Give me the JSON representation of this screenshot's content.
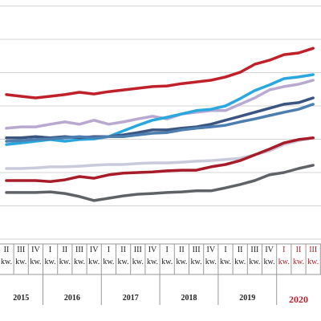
{
  "chart_data": {
    "type": "line",
    "categories": [
      "II kw.",
      "III kw.",
      "IV kw.",
      "I kw.",
      "II kw.",
      "III kw.",
      "IV kw.",
      "I kw.",
      "II kw.",
      "III kw.",
      "IV kw.",
      "I kw.",
      "II kw.",
      "III kw.",
      "IV kw.",
      "I kw.",
      "II kw.",
      "III kw.",
      "IV kw.",
      "I kw.",
      "II kw.",
      "III kw."
    ],
    "years": [
      "2015",
      "2016",
      "2017",
      "2018",
      "2019",
      "2020"
    ],
    "ylim": [
      0,
      7
    ],
    "yticks": [
      0,
      1,
      2,
      3,
      4,
      5,
      6,
      7
    ],
    "grid": true,
    "series": [
      {
        "color": "#c0202a",
        "values": [
          4.34,
          4.29,
          4.24,
          4.29,
          4.34,
          4.41,
          4.36,
          4.43,
          4.48,
          4.53,
          4.58,
          4.6,
          4.67,
          4.72,
          4.77,
          4.87,
          5.01,
          5.25,
          5.37,
          5.54,
          5.59,
          5.73
        ]
      },
      {
        "color": "#b9a8d0",
        "values": [
          3.33,
          3.37,
          3.37,
          3.45,
          3.52,
          3.45,
          3.57,
          3.45,
          3.52,
          3.61,
          3.69,
          3.61,
          3.76,
          3.81,
          3.86,
          3.86,
          4.05,
          4.24,
          4.48,
          4.58,
          4.65,
          4.77
        ]
      },
      {
        "color": "#2aa7df",
        "values": [
          2.84,
          2.89,
          2.94,
          2.99,
          2.94,
          2.99,
          3.01,
          3.08,
          3.25,
          3.42,
          3.57,
          3.66,
          3.76,
          3.86,
          3.9,
          4.0,
          4.22,
          4.46,
          4.63,
          4.82,
          4.87,
          4.94
        ]
      },
      {
        "color": "#3c5580",
        "values": [
          3.04,
          3.04,
          3.08,
          3.04,
          3.08,
          3.04,
          3.08,
          3.08,
          3.13,
          3.2,
          3.28,
          3.28,
          3.33,
          3.37,
          3.45,
          3.57,
          3.69,
          3.81,
          3.93,
          4.05,
          4.1,
          4.24
        ]
      },
      {
        "color": "#4d7eb0",
        "values": [
          2.94,
          2.96,
          2.99,
          3.01,
          3.04,
          3.08,
          3.04,
          3.08,
          3.08,
          3.13,
          3.18,
          3.2,
          3.28,
          3.33,
          3.37,
          3.42,
          3.52,
          3.61,
          3.71,
          3.81,
          3.9,
          4.05
        ]
      },
      {
        "color": "#c9cadb",
        "values": [
          2.12,
          2.12,
          2.14,
          2.17,
          2.17,
          2.19,
          2.22,
          2.24,
          2.24,
          2.27,
          2.29,
          2.29,
          2.31,
          2.34,
          2.36,
          2.39,
          2.43,
          2.53,
          2.65,
          2.84,
          2.96,
          3.04
        ]
      },
      {
        "color": "#a81c2a",
        "values": [
          1.76,
          1.76,
          1.76,
          1.73,
          1.78,
          1.88,
          1.83,
          1.93,
          1.98,
          2.0,
          2.02,
          2.05,
          2.07,
          2.07,
          2.17,
          2.24,
          2.36,
          2.53,
          2.7,
          2.89,
          2.99,
          3.04
        ]
      },
      {
        "color": "#5f6368",
        "values": [
          1.4,
          1.4,
          1.4,
          1.42,
          1.37,
          1.28,
          1.16,
          1.23,
          1.3,
          1.35,
          1.37,
          1.4,
          1.42,
          1.45,
          1.45,
          1.54,
          1.64,
          1.76,
          1.93,
          2.0,
          2.12,
          2.22
        ]
      }
    ]
  }
}
